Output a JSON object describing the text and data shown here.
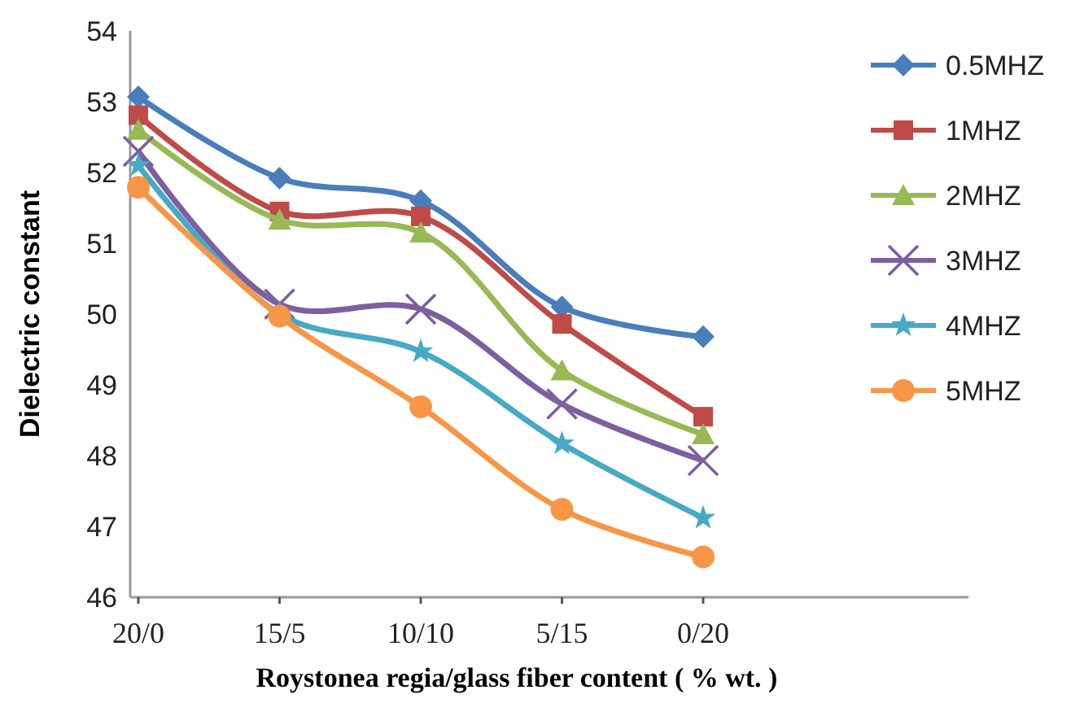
{
  "chart_data": {
    "type": "line",
    "xlabel": "Roystonea regia/glass fiber content ( % wt. )",
    "ylabel": "Dielectric constant",
    "categories": [
      "20/0",
      "15/5",
      "10/10",
      "5/15",
      "0/20"
    ],
    "ylim": [
      46,
      54
    ],
    "yticks": [
      46,
      47,
      48,
      49,
      50,
      51,
      52,
      53,
      54
    ],
    "grid": false,
    "legend": "right",
    "line_style": "solid",
    "series": [
      {
        "name": "0.5MHZ",
        "color": "#4a7ebb",
        "marker": "diamond",
        "values": [
          53.07,
          51.92,
          51.6,
          50.1,
          49.68
        ]
      },
      {
        "name": "1MHZ",
        "color": "#be4b48",
        "marker": "square",
        "values": [
          52.81,
          51.45,
          51.38,
          49.86,
          48.55
        ]
      },
      {
        "name": "2MHZ",
        "color": "#98b954",
        "marker": "triangle",
        "values": [
          52.6,
          51.33,
          51.15,
          49.2,
          48.3
        ]
      },
      {
        "name": "3MHZ",
        "color": "#7d5fa0",
        "marker": "cross",
        "values": [
          52.3,
          50.14,
          50.07,
          48.73,
          47.93
        ]
      },
      {
        "name": "4MHZ",
        "color": "#46aac5",
        "marker": "star",
        "values": [
          52.1,
          50.0,
          49.47,
          48.17,
          47.12
        ]
      },
      {
        "name": "5MHZ",
        "color": "#f79646",
        "marker": "circle",
        "values": [
          51.79,
          49.97,
          48.69,
          47.24,
          46.57
        ]
      }
    ]
  }
}
